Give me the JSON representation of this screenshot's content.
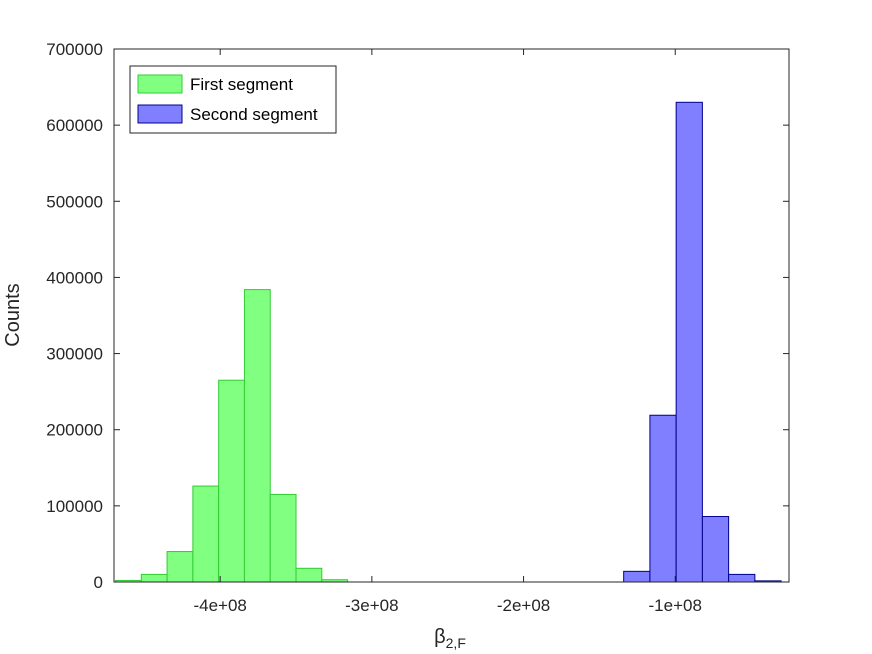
{
  "chart_data": {
    "type": "bar",
    "xlabel_main": "β",
    "xlabel_sub": "2,F",
    "ylabel": "Counts",
    "xlim": [
      -470000000,
      -25000000
    ],
    "ylim": [
      0,
      700000
    ],
    "xticks": [
      -400000000,
      -300000000,
      -200000000,
      -100000000
    ],
    "xtick_labels": [
      "-4e+08",
      "-3e+08",
      "-2e+08",
      "-1e+08"
    ],
    "yticks": [
      0,
      100000,
      200000,
      300000,
      400000,
      500000,
      600000,
      700000
    ],
    "ytick_labels": [
      "0",
      "100000",
      "200000",
      "300000",
      "400000",
      "500000",
      "600000",
      "700000"
    ],
    "grid": false,
    "legend_position": "top-left",
    "series": [
      {
        "name": "First segment",
        "fill": "#80ff80",
        "edge": "#33cc33",
        "bin_width": 17000000,
        "bin_starts": [
          -469000000,
          -452000000,
          -435000000,
          -418000000,
          -401000000,
          -384000000,
          -367000000,
          -350000000,
          -333000000
        ],
        "values": [
          2000,
          10000,
          40000,
          126000,
          265000,
          384000,
          115000,
          18000,
          3000
        ]
      },
      {
        "name": "Second segment",
        "fill": "#7f7fff",
        "edge": "#00008b",
        "bin_width": 17300000,
        "bin_starts": [
          -134000000,
          -116700000,
          -99400000,
          -82100000,
          -64800000,
          -47500000
        ],
        "values": [
          14000,
          219000,
          630000,
          86000,
          10000,
          1500
        ]
      }
    ]
  }
}
